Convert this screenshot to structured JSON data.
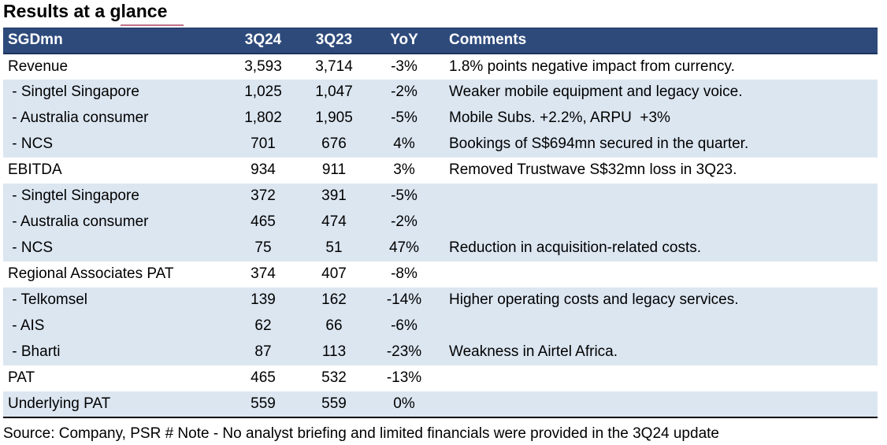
{
  "title": "Results at a glance",
  "table": {
    "headers": [
      "SGDmn",
      "3Q24",
      "3Q23",
      "YoY",
      "Comments"
    ],
    "rows": [
      {
        "label": "Revenue",
        "q24": "3,593",
        "q23": "3,714",
        "yoy": "-3%",
        "comment": "1.8% points negative impact from currency.",
        "shade": false
      },
      {
        "label": " - Singtel Singapore",
        "q24": "1,025",
        "q23": "1,047",
        "yoy": "-2%",
        "comment": "Weaker mobile equipment and legacy voice.",
        "shade": true
      },
      {
        "label": " - Australia consumer",
        "q24": "1,802",
        "q23": "1,905",
        "yoy": "-5%",
        "comment": "Mobile Subs. +2.2%, ARPU  +3%",
        "shade": true
      },
      {
        "label": " - NCS",
        "q24": "701",
        "q23": "676",
        "yoy": "4%",
        "comment": "Bookings of S$694mn secured in the quarter.",
        "shade": true
      },
      {
        "label": "EBITDA",
        "q24": "934",
        "q23": "911",
        "yoy": "3%",
        "comment": "Removed Trustwave S$32mn loss in 3Q23.",
        "shade": false
      },
      {
        "label": " - Singtel Singapore",
        "q24": "372",
        "q23": "391",
        "yoy": "-5%",
        "comment": "",
        "shade": true
      },
      {
        "label": " - Australia consumer",
        "q24": "465",
        "q23": "474",
        "yoy": "-2%",
        "comment": "",
        "shade": true
      },
      {
        "label": " - NCS",
        "q24": "75",
        "q23": "51",
        "yoy": "47%",
        "comment": "Reduction in acquisition-related costs.",
        "shade": true
      },
      {
        "label": "Regional Associates PAT",
        "q24": "374",
        "q23": "407",
        "yoy": "-8%",
        "comment": "",
        "shade": false
      },
      {
        "label": " - Telkomsel",
        "q24": "139",
        "q23": "162",
        "yoy": "-14%",
        "comment": "Higher operating costs and legacy services.",
        "shade": true
      },
      {
        "label": " - AIS",
        "q24": "62",
        "q23": "66",
        "yoy": "-6%",
        "comment": "",
        "shade": true
      },
      {
        "label": " - Bharti",
        "q24": "87",
        "q23": "113",
        "yoy": "-23%",
        "comment": "Weakness in Airtel Africa.",
        "shade": true
      },
      {
        "label": "PAT",
        "q24": "465",
        "q23": "532",
        "yoy": "-13%",
        "comment": "",
        "shade": false
      },
      {
        "label": "Underlying PAT",
        "q24": "559",
        "q23": "559",
        "yoy": "0%",
        "comment": "",
        "shade": true
      }
    ]
  },
  "source": "Source: Company, PSR # Note - No analyst briefing and limited financials were provided in the 3Q24 update",
  "colors": {
    "header_bg": "#2e4a7b",
    "row_shade": "#dce6f1",
    "title_underline": "#c0708a"
  }
}
